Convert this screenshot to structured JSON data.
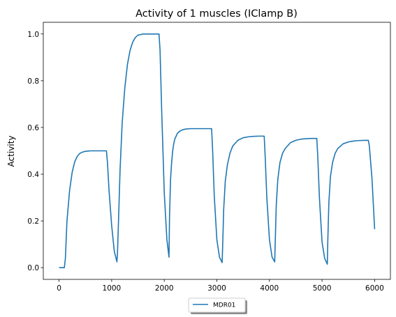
{
  "chart_data": {
    "type": "line",
    "title": "Activity of 1 muscles (IClamp B)",
    "xlabel": "",
    "ylabel": "Activity",
    "xlim": [
      -300,
      6300
    ],
    "ylim": [
      -0.05,
      1.05
    ],
    "xticks": [
      0,
      1000,
      2000,
      3000,
      4000,
      5000,
      6000
    ],
    "xtick_labels": [
      "0",
      "1000",
      "2000",
      "3000",
      "4000",
      "5000",
      "6000"
    ],
    "yticks": [
      0.0,
      0.2,
      0.4,
      0.6,
      0.8,
      1.0
    ],
    "ytick_labels": [
      "0.0",
      "0.2",
      "0.4",
      "0.6",
      "0.8",
      "1.0"
    ],
    "grid": false,
    "legend_position": "bottom-center",
    "series": [
      {
        "name": "MDR01",
        "color": "#1f77b4",
        "x": [
          0,
          50,
          100,
          120,
          150,
          200,
          250,
          300,
          350,
          400,
          450,
          500,
          600,
          700,
          800,
          900,
          920,
          950,
          1000,
          1050,
          1100,
          1110,
          1130,
          1160,
          1200,
          1250,
          1300,
          1350,
          1400,
          1450,
          1500,
          1600,
          1700,
          1800,
          1900,
          1920,
          1950,
          2000,
          2050,
          2090,
          2100,
          2120,
          2140,
          2160,
          2180,
          2200,
          2250,
          2300,
          2350,
          2400,
          2500,
          2600,
          2700,
          2800,
          2900,
          2920,
          2950,
          3000,
          3050,
          3100,
          3110,
          3130,
          3160,
          3200,
          3250,
          3300,
          3400,
          3500,
          3600,
          3700,
          3800,
          3900,
          3920,
          3950,
          4000,
          4050,
          4100,
          4110,
          4130,
          4160,
          4200,
          4250,
          4300,
          4400,
          4500,
          4600,
          4700,
          4800,
          4900,
          4920,
          4950,
          5000,
          5050,
          5100,
          5110,
          5130,
          5160,
          5200,
          5250,
          5300,
          5400,
          5500,
          5600,
          5700,
          5800,
          5880,
          5900,
          5950,
          6000
        ],
        "y": [
          0.0,
          0.0,
          0.0,
          0.04,
          0.2,
          0.33,
          0.41,
          0.455,
          0.478,
          0.49,
          0.495,
          0.498,
          0.5,
          0.5,
          0.5,
          0.5,
          0.45,
          0.33,
          0.18,
          0.07,
          0.025,
          0.06,
          0.2,
          0.42,
          0.62,
          0.77,
          0.87,
          0.93,
          0.965,
          0.985,
          0.995,
          1.0,
          1.0,
          1.0,
          1.0,
          0.93,
          0.68,
          0.32,
          0.12,
          0.045,
          0.22,
          0.38,
          0.45,
          0.5,
          0.53,
          0.55,
          0.575,
          0.585,
          0.59,
          0.593,
          0.595,
          0.595,
          0.595,
          0.595,
          0.595,
          0.5,
          0.31,
          0.12,
          0.045,
          0.022,
          0.09,
          0.25,
          0.37,
          0.44,
          0.49,
          0.52,
          0.545,
          0.556,
          0.56,
          0.562,
          0.563,
          0.563,
          0.47,
          0.3,
          0.12,
          0.045,
          0.025,
          0.11,
          0.27,
          0.38,
          0.45,
          0.49,
          0.51,
          0.535,
          0.545,
          0.55,
          0.552,
          0.553,
          0.553,
          0.47,
          0.3,
          0.11,
          0.04,
          0.015,
          0.12,
          0.28,
          0.39,
          0.45,
          0.49,
          0.51,
          0.53,
          0.538,
          0.542,
          0.544,
          0.545,
          0.545,
          0.52,
          0.38,
          0.165
        ]
      }
    ]
  }
}
